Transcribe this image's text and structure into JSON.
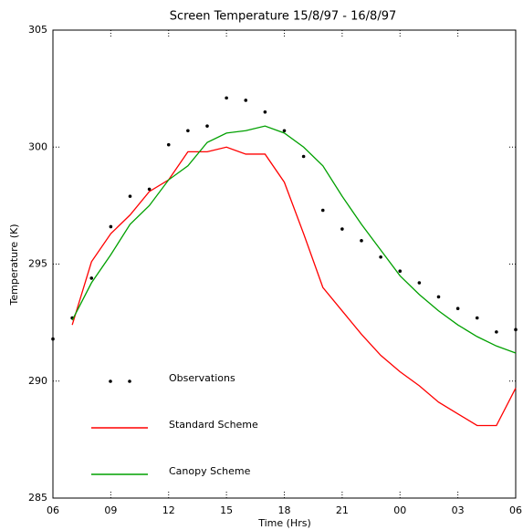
{
  "chart_data": {
    "type": "line",
    "title": "Screen Temperature 15/8/97 - 16/8/97",
    "x_label": "Time (Hrs)",
    "y_label": "Temperature (K)",
    "x": [
      6,
      7,
      8,
      9,
      10,
      11,
      12,
      13,
      14,
      15,
      16,
      17,
      18,
      19,
      20,
      21,
      22,
      23,
      24,
      25,
      26,
      27,
      28,
      29,
      30
    ],
    "xlim": [
      6,
      30
    ],
    "xticks": [
      {
        "value": 6,
        "label": "06"
      },
      {
        "value": 9,
        "label": "09"
      },
      12,
      15,
      18,
      21,
      {
        "value": 24,
        "label": "00"
      },
      {
        "value": 27,
        "label": "03"
      },
      {
        "value": 30,
        "label": "06"
      }
    ],
    "ylim": [
      285,
      305
    ],
    "yticks": [
      285,
      290,
      295,
      300,
      305
    ],
    "legend": "lower left",
    "series": [
      {
        "name": "Observations",
        "style": "points",
        "color": "#000000",
        "values": [
          291.8,
          292.7,
          294.4,
          296.6,
          297.9,
          298.2,
          300.1,
          300.7,
          300.9,
          302.1,
          302.0,
          301.5,
          300.7,
          299.6,
          297.3,
          296.5,
          296.0,
          295.3,
          294.7,
          294.2,
          293.6,
          293.1,
          292.7,
          292.1,
          292.2
        ]
      },
      {
        "name": "Standard Scheme",
        "style": "line",
        "color": "#ff0000",
        "values": [
          null,
          292.4,
          295.1,
          296.3,
          297.1,
          298.1,
          298.6,
          299.8,
          299.8,
          300.0,
          299.7,
          299.7,
          298.5,
          296.3,
          294.0,
          293.0,
          292.0,
          291.1,
          290.4,
          289.8,
          289.1,
          288.6,
          288.1,
          288.1,
          289.7
        ]
      },
      {
        "name": "Canopy Scheme",
        "style": "line",
        "color": "#00a000",
        "values": [
          null,
          292.6,
          294.2,
          295.4,
          296.7,
          297.5,
          298.6,
          299.2,
          300.2,
          300.6,
          300.7,
          300.9,
          300.6,
          300.0,
          299.2,
          297.9,
          296.7,
          295.6,
          294.5,
          293.7,
          293.0,
          292.4,
          291.9,
          291.5,
          291.2
        ]
      }
    ]
  }
}
